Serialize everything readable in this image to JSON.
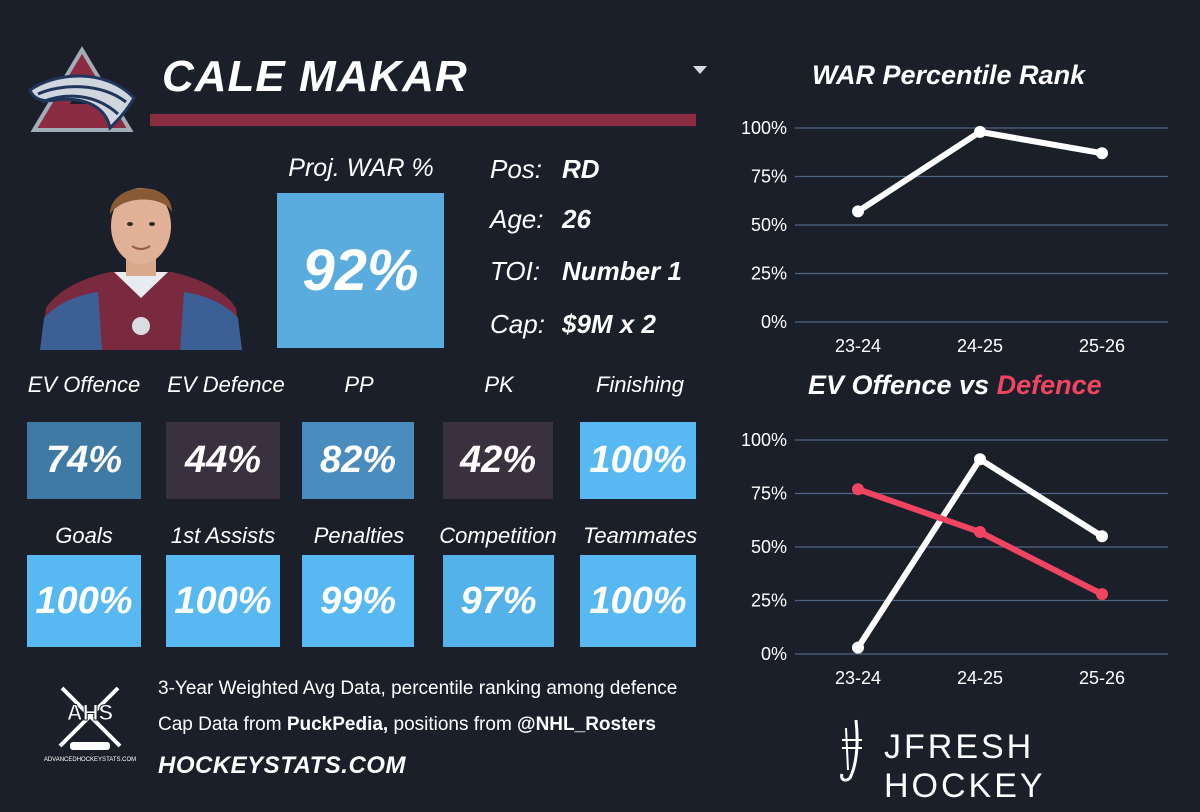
{
  "player": {
    "name": "CALE MAKAR"
  },
  "war": {
    "label": "Proj. WAR %",
    "value": "92%",
    "color": "#5aacde"
  },
  "info": [
    {
      "key": "Pos:",
      "value": "RD"
    },
    {
      "key": "Age:",
      "value": "26"
    },
    {
      "key": "TOI:",
      "value": "Number 1"
    },
    {
      "key": "Cap:",
      "value": "$9M x 2"
    }
  ],
  "metrics_row1": [
    {
      "label": "EV Offence",
      "value": "74%",
      "color": "#3f7aa5"
    },
    {
      "label": "EV Defence",
      "value": "44%",
      "color": "#3a3140"
    },
    {
      "label": "PP",
      "value": "82%",
      "color": "#4a8cbe"
    },
    {
      "label": "PK",
      "value": "42%",
      "color": "#3a3140"
    },
    {
      "label": "Finishing",
      "value": "100%",
      "color": "#57b8f2"
    }
  ],
  "metrics_row2": [
    {
      "label": "Goals",
      "value": "100%",
      "color": "#57b8f2"
    },
    {
      "label": "1st Assists",
      "value": "100%",
      "color": "#57b8f2"
    },
    {
      "label": "Penalties",
      "value": "99%",
      "color": "#57b8f2"
    },
    {
      "label": "Competition",
      "value": "97%",
      "color": "#54b2ea"
    },
    {
      "label": "Teammates",
      "value": "100%",
      "color": "#57b8f2"
    }
  ],
  "chart_data": [
    {
      "type": "line",
      "title": "WAR Percentile Rank",
      "categories": [
        "23-24",
        "24-25",
        "25-26"
      ],
      "y_ticks": [
        "0%",
        "25%",
        "50%",
        "75%",
        "100%"
      ],
      "ylim": [
        0,
        100
      ],
      "series": [
        {
          "name": "WAR",
          "values": [
            57,
            98,
            87
          ],
          "color": "#ffffff"
        }
      ]
    },
    {
      "type": "line",
      "title": "EV Offence vs Defence",
      "title_parts": [
        "EV Offence vs ",
        "Defence"
      ],
      "categories": [
        "23-24",
        "24-25",
        "25-26"
      ],
      "y_ticks": [
        "0%",
        "25%",
        "50%",
        "75%",
        "100%"
      ],
      "ylim": [
        0,
        100
      ],
      "series": [
        {
          "name": "EV Offence",
          "values": [
            3,
            91,
            55
          ],
          "color": "#ffffff"
        },
        {
          "name": "Defence",
          "values": [
            77,
            57,
            28
          ],
          "color": "#ef4560"
        }
      ]
    }
  ],
  "footer": {
    "logo_text": "AHS",
    "logo_subtext": "ADVANCEDHOCKEYSTATS.COM",
    "note1": "3-Year Weighted Avg Data, percentile ranking among defence",
    "note2_prefix": "Cap Data from ",
    "note2_source1": "PuckPedia,",
    "note2_middle": " positions from ",
    "note2_source2": "@NHL_Rosters",
    "site": "HOCKEYSTATS.COM",
    "brand": "JFRESH HOCKEY"
  }
}
